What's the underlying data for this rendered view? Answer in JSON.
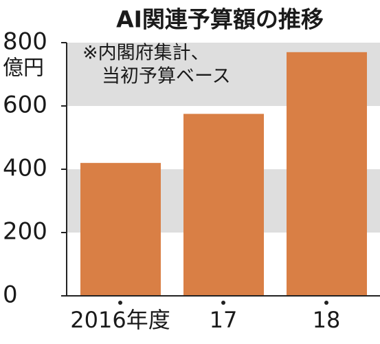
{
  "chart_data": {
    "type": "bar",
    "title": "AI関連予算額の推移",
    "y_unit": "億円",
    "note": [
      "※内閣府集計、",
      "当初予算ベース"
    ],
    "categories": [
      "2016年度",
      "17",
      "18"
    ],
    "values": [
      420,
      575,
      770
    ],
    "color": "#d97f45",
    "ylim": [
      0,
      800
    ],
    "yticks": [
      0,
      200,
      400,
      600,
      800
    ],
    "grid_bands": true,
    "band_color": "#dedede"
  }
}
